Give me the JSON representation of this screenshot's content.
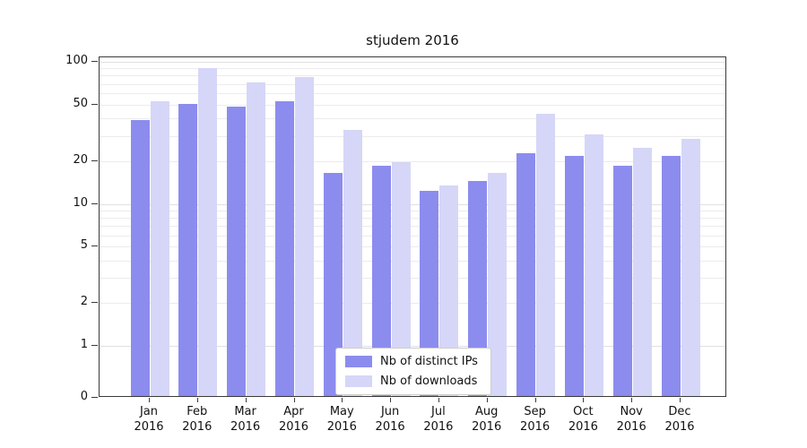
{
  "chart_data": {
    "type": "bar",
    "title": "stjudem 2016",
    "categories": [
      "Jan",
      "Feb",
      "Mar",
      "Apr",
      "May",
      "Jun",
      "Jul",
      "Aug",
      "Sep",
      "Oct",
      "Nov",
      "Dec"
    ],
    "year": "2016",
    "series": [
      {
        "name": "Nb of distinct IPs",
        "color": "#8c8cee",
        "values": [
          38,
          49,
          47,
          51,
          16,
          18,
          12,
          14,
          22,
          21,
          18,
          21
        ]
      },
      {
        "name": "Nb of downloads",
        "color": "#d6d6f8",
        "values": [
          51,
          88,
          70,
          76,
          32,
          19,
          13,
          16,
          42,
          30,
          24,
          28
        ]
      }
    ],
    "yscale": "symlog",
    "ylim": [
      0,
      100
    ],
    "yticks": [
      100,
      50,
      20,
      10,
      5,
      2,
      1,
      0
    ],
    "grid": "horizontal",
    "legend_position": "bottom-center"
  }
}
